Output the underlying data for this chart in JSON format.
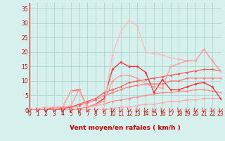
{
  "background_color": "#d6f0ee",
  "grid_color": "#b0d4d0",
  "x_ticks": [
    0,
    1,
    2,
    3,
    4,
    5,
    6,
    7,
    8,
    9,
    10,
    11,
    12,
    13,
    14,
    15,
    16,
    17,
    18,
    19,
    20,
    21,
    22,
    23
  ],
  "xlabel": "Vent moyen/en rafales ( km/h )",
  "ylabel_ticks": [
    0,
    5,
    10,
    15,
    20,
    25,
    30,
    35
  ],
  "ylim": [
    0,
    37
  ],
  "xlim": [
    0,
    23
  ],
  "series": [
    {
      "color": "#ffaaaa",
      "lw": 0.9,
      "marker": "D",
      "ms": 1.8,
      "data_x": [
        0,
        1,
        2,
        3,
        4,
        5,
        6,
        7,
        8,
        9,
        10,
        11,
        12,
        13,
        14,
        15,
        16,
        17,
        18,
        19,
        20,
        21,
        22,
        23
      ],
      "data_y": [
        0,
        0,
        0,
        0,
        0,
        0,
        0,
        0,
        0,
        0,
        0.5,
        1,
        1,
        1.5,
        2,
        2,
        2.5,
        3,
        3,
        3.5,
        3.5,
        4,
        4,
        4
      ]
    },
    {
      "color": "#ff8888",
      "lw": 0.9,
      "marker": "D",
      "ms": 1.8,
      "data_x": [
        0,
        1,
        2,
        3,
        4,
        5,
        6,
        7,
        8,
        9,
        10,
        11,
        12,
        13,
        14,
        15,
        16,
        17,
        18,
        19,
        20,
        21,
        22,
        23
      ],
      "data_y": [
        0,
        0,
        0,
        0,
        0,
        0,
        0.5,
        1,
        1.5,
        2,
        3,
        3.5,
        4,
        4.5,
        5,
        5.5,
        6,
        6,
        6.5,
        6.5,
        7,
        7,
        6.5,
        6
      ]
    },
    {
      "color": "#ff7777",
      "lw": 0.9,
      "marker": "D",
      "ms": 1.8,
      "data_x": [
        0,
        1,
        2,
        3,
        4,
        5,
        6,
        7,
        8,
        9,
        10,
        11,
        12,
        13,
        14,
        15,
        16,
        17,
        18,
        19,
        20,
        21,
        22,
        23
      ],
      "data_y": [
        0,
        0,
        0,
        0,
        0.5,
        1,
        1.5,
        2.5,
        3.5,
        5,
        6,
        7,
        8,
        8.5,
        9,
        9,
        9,
        10,
        10,
        11,
        11,
        11,
        11,
        11
      ]
    },
    {
      "color": "#ff5555",
      "lw": 0.9,
      "marker": "D",
      "ms": 1.8,
      "data_x": [
        0,
        1,
        2,
        3,
        4,
        5,
        6,
        7,
        8,
        9,
        10,
        11,
        12,
        13,
        14,
        15,
        16,
        17,
        18,
        19,
        20,
        21,
        22,
        23
      ],
      "data_y": [
        0,
        0,
        0,
        0,
        0.5,
        1,
        2,
        3,
        4,
        6,
        7,
        8,
        9.5,
        10,
        10.5,
        11,
        11.5,
        12,
        12.5,
        13,
        13.5,
        14,
        14,
        13.5
      ]
    },
    {
      "color": "#ff3333",
      "lw": 1.0,
      "marker": "D",
      "ms": 2.0,
      "data_x": [
        0,
        1,
        2,
        3,
        4,
        5,
        6,
        7,
        8,
        9,
        10,
        11,
        12,
        13,
        14,
        15,
        16,
        17,
        18,
        19,
        20,
        21,
        22,
        23
      ],
      "data_y": [
        0,
        0,
        0,
        1,
        1,
        6.5,
        7,
        1,
        2,
        4,
        14,
        16.5,
        15,
        15,
        13,
        6,
        10.5,
        7,
        7,
        8,
        9,
        9.5,
        8,
        4
      ]
    },
    {
      "color": "#ffbbbb",
      "lw": 1.0,
      "marker": "D",
      "ms": 2.0,
      "data_x": [
        0,
        1,
        2,
        3,
        4,
        5,
        6,
        7,
        8,
        9,
        10,
        11,
        12,
        13,
        14,
        15,
        16,
        17,
        18,
        19,
        20,
        21,
        22,
        23
      ],
      "data_y": [
        0,
        0.5,
        1,
        1,
        1,
        6.5,
        6.5,
        1,
        1.5,
        2,
        19,
        27,
        31,
        29,
        20,
        19.5,
        19,
        18,
        17.5,
        17,
        17,
        21,
        17,
        13.5
      ]
    },
    {
      "color": "#ff9999",
      "lw": 0.9,
      "marker": "D",
      "ms": 1.8,
      "data_x": [
        0,
        1,
        2,
        3,
        4,
        5,
        6,
        7,
        8,
        9,
        10,
        11,
        12,
        13,
        14,
        15,
        16,
        17,
        18,
        19,
        20,
        21,
        22,
        23
      ],
      "data_y": [
        0,
        0,
        0,
        0,
        1,
        1.5,
        7,
        1,
        2,
        3,
        10,
        12,
        12,
        11,
        9,
        8,
        7.5,
        15,
        16,
        17,
        17,
        21,
        17,
        13.5
      ]
    }
  ],
  "xlabel_color": "#cc0000",
  "tick_color": "#cc0000",
  "axis_line_color": "#cc0000",
  "xlabel_fontsize": 6.5,
  "tick_fontsize": 5.5
}
